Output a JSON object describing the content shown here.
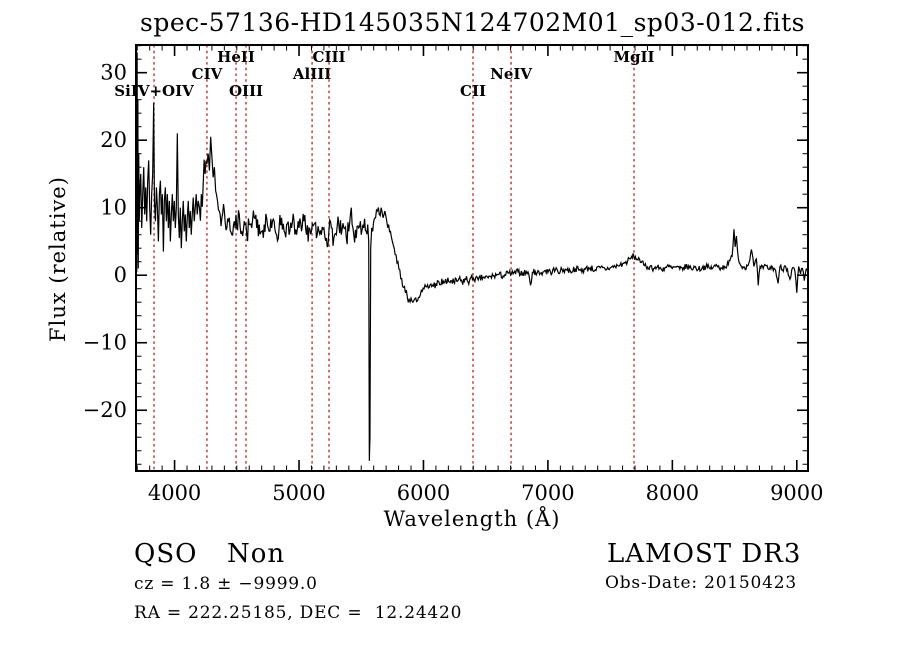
{
  "title": "spec-57136-HD145035N124702M01_sp03-012.fits",
  "colors": {
    "background": "#ffffff",
    "spectrum": "#000000",
    "axis": "#000000",
    "line_marker": "#b22222"
  },
  "annotations": {
    "class_label": "QSO",
    "subclass_label": "Non",
    "cz_line": "cz = 1.8 ± −9999.0",
    "radec_line": "RA = 222.25185, DEC =  12.24420",
    "survey": "LAMOST DR3",
    "obs_date": "Obs-Date: 20150423"
  },
  "chart_data": {
    "type": "line",
    "title": "spec-57136-HD145035N124702M01_sp03-012.fits",
    "xlabel": "Wavelength (Å)",
    "ylabel": "Flux (relative)",
    "xlim": [
      3690,
      9090
    ],
    "ylim": [
      -29.0,
      34.1
    ],
    "xticks": [
      4000,
      5000,
      6000,
      7000,
      8000,
      9000
    ],
    "yticks": [
      -20,
      -10,
      0,
      10,
      20,
      30
    ],
    "x_minor_step": 100,
    "y_minor_step": 2,
    "grid": false,
    "legend": null,
    "spectral_lines": [
      {
        "label": "SiIV+OIV",
        "wavelength": 3835,
        "row": 3
      },
      {
        "label": "CIV",
        "wavelength": 4260,
        "row": 2
      },
      {
        "label": "HeII",
        "wavelength": 4494,
        "row": 1
      },
      {
        "label": "OIII",
        "wavelength": 4574,
        "row": 3
      },
      {
        "label": "AlIII",
        "wavelength": 5105,
        "row": 2
      },
      {
        "label": "CIII",
        "wavelength": 5241,
        "row": 1
      },
      {
        "label": "CII",
        "wavelength": 6398,
        "row": 3
      },
      {
        "label": "NeIV",
        "wavelength": 6704,
        "row": 2
      },
      {
        "label": "MgII",
        "wavelength": 7692,
        "row": 1
      }
    ],
    "noise_profile": [
      [
        3716,
        4400,
        3.0
      ],
      [
        4400,
        5552,
        1.7
      ],
      [
        5584,
        5750,
        1.1
      ],
      [
        5750,
        6400,
        0.7
      ],
      [
        6400,
        7400,
        0.5
      ],
      [
        7400,
        9090,
        0.45
      ]
    ],
    "series": [
      {
        "name": "flux",
        "points": [
          [
            3690,
            2
          ],
          [
            3693,
            30
          ],
          [
            3696,
            0.5
          ],
          [
            3699,
            33
          ],
          [
            3702,
            3
          ],
          [
            3705,
            26
          ],
          [
            3708,
            1
          ],
          [
            3712,
            18
          ],
          [
            3716,
            8
          ],
          [
            3720,
            12
          ],
          [
            3728,
            15
          ],
          [
            3736,
            7
          ],
          [
            3744,
            12
          ],
          [
            3752,
            16
          ],
          [
            3760,
            9
          ],
          [
            3768,
            13
          ],
          [
            3776,
            8
          ],
          [
            3784,
            14
          ],
          [
            3792,
            17
          ],
          [
            3800,
            10
          ],
          [
            3808,
            6
          ],
          [
            3816,
            12
          ],
          [
            3824,
            15
          ],
          [
            3832,
            25.5
          ],
          [
            3838,
            11
          ],
          [
            3846,
            8
          ],
          [
            3854,
            13
          ],
          [
            3862,
            10
          ],
          [
            3870,
            5
          ],
          [
            3878,
            12
          ],
          [
            3886,
            14
          ],
          [
            3894,
            9
          ],
          [
            3902,
            12
          ],
          [
            3910,
            3.5
          ],
          [
            3918,
            11
          ],
          [
            3926,
            13
          ],
          [
            3934,
            8
          ],
          [
            3942,
            12
          ],
          [
            3950,
            7
          ],
          [
            3958,
            11
          ],
          [
            3966,
            5
          ],
          [
            3974,
            9
          ],
          [
            3982,
            12
          ],
          [
            3990,
            8
          ],
          [
            3998,
            11
          ],
          [
            4006,
            7
          ],
          [
            4014,
            10
          ],
          [
            4022,
            21
          ],
          [
            4030,
            9
          ],
          [
            4038,
            5.5
          ],
          [
            4046,
            10
          ],
          [
            4054,
            4
          ],
          [
            4062,
            8
          ],
          [
            4070,
            11
          ],
          [
            4078,
            6.5
          ],
          [
            4086,
            9
          ],
          [
            4094,
            5
          ],
          [
            4102,
            8.5
          ],
          [
            4110,
            11
          ],
          [
            4118,
            7
          ],
          [
            4126,
            9.5
          ],
          [
            4134,
            6
          ],
          [
            4142,
            9
          ],
          [
            4150,
            11.5
          ],
          [
            4158,
            8
          ],
          [
            4166,
            10
          ],
          [
            4174,
            12
          ],
          [
            4182,
            9
          ],
          [
            4190,
            11
          ],
          [
            4200,
            10
          ],
          [
            4215,
            12
          ],
          [
            4230,
            13.5
          ],
          [
            4245,
            15
          ],
          [
            4260,
            16.5
          ],
          [
            4270,
            18
          ],
          [
            4280,
            15.5
          ],
          [
            4290,
            20.5
          ],
          [
            4300,
            17.5
          ],
          [
            4310,
            14.5
          ],
          [
            4320,
            16
          ],
          [
            4330,
            12.5
          ],
          [
            4345,
            11
          ],
          [
            4360,
            9.5
          ],
          [
            4380,
            8.5
          ],
          [
            4400,
            9.5
          ],
          [
            4420,
            7
          ],
          [
            4440,
            8.5
          ],
          [
            4460,
            6
          ],
          [
            4480,
            8
          ],
          [
            4500,
            7
          ],
          [
            4520,
            9
          ],
          [
            4540,
            6.5
          ],
          [
            4560,
            8
          ],
          [
            4580,
            6
          ],
          [
            4600,
            7.5
          ],
          [
            4620,
            7
          ],
          [
            4640,
            8.5
          ],
          [
            4660,
            7
          ],
          [
            4680,
            7.5
          ],
          [
            4700,
            6.5
          ],
          [
            4720,
            7.5
          ],
          [
            4740,
            8.5
          ],
          [
            4760,
            6.5
          ],
          [
            4780,
            7
          ],
          [
            4800,
            8
          ],
          [
            4820,
            6
          ],
          [
            4840,
            7
          ],
          [
            4860,
            8.5
          ],
          [
            4880,
            6.5
          ],
          [
            4900,
            7.5
          ],
          [
            4920,
            6
          ],
          [
            4940,
            7
          ],
          [
            4960,
            8
          ],
          [
            4980,
            6
          ],
          [
            5000,
            7
          ],
          [
            5020,
            6.5
          ],
          [
            5040,
            8
          ],
          [
            5060,
            6
          ],
          [
            5080,
            7
          ],
          [
            5100,
            6.5
          ],
          [
            5120,
            7.5
          ],
          [
            5140,
            5.5
          ],
          [
            5160,
            6.5
          ],
          [
            5180,
            6
          ],
          [
            5200,
            7
          ],
          [
            5220,
            5.5
          ],
          [
            5240,
            6.5
          ],
          [
            5260,
            7
          ],
          [
            5280,
            5.5
          ],
          [
            5300,
            6
          ],
          [
            5320,
            7.5
          ],
          [
            5340,
            6
          ],
          [
            5360,
            7
          ],
          [
            5380,
            5.5
          ],
          [
            5400,
            6.5
          ],
          [
            5420,
            10
          ],
          [
            5440,
            6
          ],
          [
            5460,
            5.5
          ],
          [
            5480,
            7
          ],
          [
            5500,
            6
          ],
          [
            5520,
            7
          ],
          [
            5540,
            6.5
          ],
          [
            5552,
            7.5
          ],
          [
            5560,
            5
          ],
          [
            5565,
            -27.5
          ],
          [
            5570,
            -24
          ],
          [
            5576,
            4
          ],
          [
            5584,
            7
          ],
          [
            5592,
            6.5
          ],
          [
            5600,
            8
          ],
          [
            5615,
            8.5
          ],
          [
            5630,
            9.5
          ],
          [
            5645,
            9
          ],
          [
            5660,
            10
          ],
          [
            5675,
            8.5
          ],
          [
            5690,
            9.5
          ],
          [
            5705,
            8
          ],
          [
            5720,
            7.5
          ],
          [
            5735,
            6.5
          ],
          [
            5750,
            5
          ],
          [
            5765,
            4
          ],
          [
            5780,
            3
          ],
          [
            5795,
            2
          ],
          [
            5810,
            0.8
          ],
          [
            5825,
            -0.5
          ],
          [
            5840,
            -1.8
          ],
          [
            5855,
            -2.6
          ],
          [
            5870,
            -3.2
          ],
          [
            5885,
            -3.6
          ],
          [
            5900,
            -3.4
          ],
          [
            5915,
            -4
          ],
          [
            5930,
            -3.5
          ],
          [
            5945,
            -3.9
          ],
          [
            5960,
            -3.3
          ],
          [
            5975,
            -2.9
          ],
          [
            5990,
            -2.4
          ],
          [
            6005,
            -2
          ],
          [
            6020,
            -1.7
          ],
          [
            6040,
            -1.9
          ],
          [
            6060,
            -1.3
          ],
          [
            6080,
            -1.6
          ],
          [
            6100,
            -1.2
          ],
          [
            6130,
            -1.4
          ],
          [
            6160,
            -0.9
          ],
          [
            6190,
            -1.1
          ],
          [
            6220,
            -0.8
          ],
          [
            6250,
            -1.2
          ],
          [
            6280,
            -0.7
          ],
          [
            6310,
            -1
          ],
          [
            6340,
            -0.6
          ],
          [
            6370,
            -0.8
          ],
          [
            6400,
            -0.4
          ],
          [
            6440,
            -0.7
          ],
          [
            6480,
            -0.3
          ],
          [
            6520,
            -0.4
          ],
          [
            6560,
            -0.1
          ],
          [
            6600,
            0.1
          ],
          [
            6640,
            -0.1
          ],
          [
            6680,
            0.3
          ],
          [
            6720,
            0.2
          ],
          [
            6760,
            0.5
          ],
          [
            6800,
            0.3
          ],
          [
            6840,
            0.5
          ],
          [
            6860,
            -1.5
          ],
          [
            6875,
            0.4
          ],
          [
            6900,
            0.5
          ],
          [
            6940,
            0.3
          ],
          [
            6980,
            0.7
          ],
          [
            7020,
            0.5
          ],
          [
            7060,
            0.8
          ],
          [
            7100,
            0.6
          ],
          [
            7140,
            0.9
          ],
          [
            7180,
            0.6
          ],
          [
            7220,
            1
          ],
          [
            7260,
            0.7
          ],
          [
            7300,
            0.9
          ],
          [
            7340,
            1.1
          ],
          [
            7380,
            0.8
          ],
          [
            7420,
            1.1
          ],
          [
            7460,
            0.9
          ],
          [
            7500,
            1.1
          ],
          [
            7540,
            1.3
          ],
          [
            7580,
            1.5
          ],
          [
            7620,
            1.8
          ],
          [
            7660,
            2.4
          ],
          [
            7690,
            2.9
          ],
          [
            7710,
            2.3
          ],
          [
            7730,
            2.6
          ],
          [
            7750,
            1.9
          ],
          [
            7770,
            1.5
          ],
          [
            7790,
            1.2
          ],
          [
            7820,
            1.3
          ],
          [
            7850,
            1
          ],
          [
            7880,
            1.2
          ],
          [
            7910,
            0.9
          ],
          [
            7940,
            1.1
          ],
          [
            7970,
            1.3
          ],
          [
            8000,
            1
          ],
          [
            8030,
            1.2
          ],
          [
            8060,
            0.9
          ],
          [
            8090,
            1.1
          ],
          [
            8120,
            1.3
          ],
          [
            8150,
            1
          ],
          [
            8180,
            1.2
          ],
          [
            8210,
            0.9
          ],
          [
            8240,
            1.1
          ],
          [
            8270,
            1.3
          ],
          [
            8300,
            1
          ],
          [
            8330,
            1.2
          ],
          [
            8360,
            1.4
          ],
          [
            8390,
            1.1
          ],
          [
            8420,
            1.3
          ],
          [
            8450,
            1.6
          ],
          [
            8480,
            2.8
          ],
          [
            8495,
            6.8
          ],
          [
            8505,
            4.2
          ],
          [
            8515,
            5.8
          ],
          [
            8530,
            2.5
          ],
          [
            8550,
            1.4
          ],
          [
            8580,
            1.2
          ],
          [
            8610,
            1.5
          ],
          [
            8635,
            3.8
          ],
          [
            8655,
            1.3
          ],
          [
            8675,
            2.4
          ],
          [
            8690,
            -1.5
          ],
          [
            8705,
            1.3
          ],
          [
            8730,
            1
          ],
          [
            8755,
            1.4
          ],
          [
            8780,
            0.9
          ],
          [
            8805,
            1.2
          ],
          [
            8830,
            0.7
          ],
          [
            8850,
            -1.2
          ],
          [
            8865,
            1.3
          ],
          [
            8885,
            0.8
          ],
          [
            8905,
            1.4
          ],
          [
            8925,
            0.9
          ],
          [
            8945,
            -0.6
          ],
          [
            8965,
            1.1
          ],
          [
            8985,
            0.6
          ],
          [
            9000,
            -2.6
          ],
          [
            9015,
            1.3
          ],
          [
            9030,
            0.2
          ],
          [
            9045,
            1
          ],
          [
            9060,
            -0.8
          ],
          [
            9075,
            0.9
          ],
          [
            9090,
            0.2
          ]
        ]
      }
    ]
  }
}
